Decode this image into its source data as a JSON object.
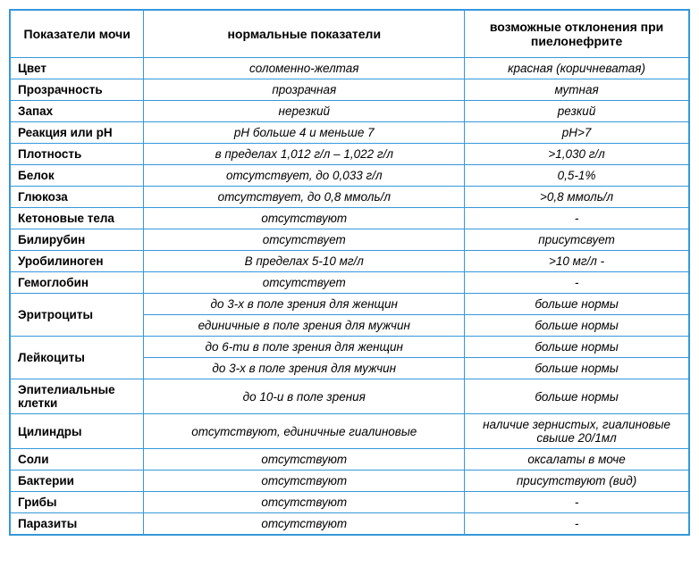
{
  "table": {
    "border_color": "#3498db",
    "background_color": "#ffffff",
    "text_color": "#000000",
    "headers": {
      "param": "Показатели мочи",
      "normal": "нормальные показатели",
      "deviation": "возможные отклонения при пиелонефрите"
    },
    "rows": [
      {
        "param": "Цвет",
        "normal": "соломенно-желтая",
        "deviation": "красная (коричневатая)"
      },
      {
        "param": "Прозрачность",
        "normal": "прозрачная",
        "deviation": "мутная"
      },
      {
        "param": "Запах",
        "normal": "нерезкий",
        "deviation": "резкий"
      },
      {
        "param": "Реакция или pH",
        "normal": "pH больше 4 и меньше 7",
        "deviation": "pH>7"
      },
      {
        "param": "Плотность",
        "normal": "в пределах 1,012 г/л – 1,022 г/л",
        "deviation": ">1,030 г/л"
      },
      {
        "param": "Белок",
        "normal": "отсутствует, до 0,033 г/л",
        "deviation": "0,5-1%"
      },
      {
        "param": "Глюкоза",
        "normal": "отсутствует, до 0,8 ммоль/л",
        "deviation": ">0,8 ммоль/л"
      },
      {
        "param": "Кетоновые тела",
        "normal": "отсутствуют",
        "deviation": "-"
      },
      {
        "param": "Билирубин",
        "normal": "отсутствует",
        "deviation": "присутсвует"
      },
      {
        "param": "Уробилиноген",
        "normal": "В пределах 5-10 мг/л",
        "deviation": ">10 мг/л -"
      },
      {
        "param": "Гемоглобин",
        "normal": "отсутствует",
        "deviation": "-"
      },
      {
        "param": "Эритроциты",
        "rowspan": 2,
        "normal": "до 3-х в поле зрения для женщин",
        "deviation": "больше нормы"
      },
      {
        "param": null,
        "normal": "единичные в поле зрения для мужчин",
        "deviation": "больше нормы"
      },
      {
        "param": "Лейкоциты",
        "rowspan": 2,
        "normal": "до 6-ти в поле зрения для женщин",
        "deviation": "больше нормы"
      },
      {
        "param": null,
        "normal": "до 3-х в поле зрения для мужчин",
        "deviation": "больше нормы"
      },
      {
        "param": "Эпителиальные клетки",
        "normal": "до 10-и в поле зрения",
        "deviation": "больше нормы"
      },
      {
        "param": "Цилиндры",
        "normal": "отсутствуют, единичные гиалиновые",
        "deviation": "наличие зернистых, гиалиновые свыше 20/1мл"
      },
      {
        "param": "Соли",
        "normal": "отсутствуют",
        "deviation": "оксалаты в моче"
      },
      {
        "param": "Бактерии",
        "normal": "отсутствуют",
        "deviation": "присутствуют (вид)"
      },
      {
        "param": "Грибы",
        "normal": "отсутствуют",
        "deviation": "-"
      },
      {
        "param": "Паразиты",
        "normal": "отсутствуют",
        "deviation": "-"
      }
    ]
  }
}
